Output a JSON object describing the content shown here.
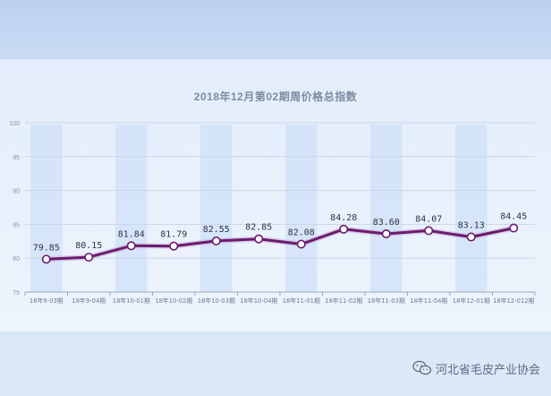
{
  "chart_data": {
    "type": "line",
    "title": "2018年12月第02期周价格总指数",
    "categories": [
      "18年9-03期",
      "18年9-04期",
      "18年10-01期",
      "18年10-02期",
      "18年10-03期",
      "18年10-04期",
      "18年11-01期",
      "18年11-02期",
      "18年11-03期",
      "18年11-04期",
      "18年12-01期",
      "18年12-012期"
    ],
    "series": [
      {
        "values": [
          79.85,
          80.15,
          81.84,
          81.79,
          82.55,
          82.85,
          82.08,
          84.28,
          83.6,
          84.07,
          83.13,
          84.45
        ]
      }
    ],
    "value_labels": [
      "79.85",
      "80.15",
      "81.84",
      "81.79",
      "82.55",
      "82.85",
      "82.08",
      "84.28",
      "83.60",
      "84.07",
      "83.13",
      "84.45"
    ],
    "ylim": [
      75,
      100
    ],
    "yticks": [
      "75",
      "80",
      "85",
      "90",
      "95",
      "100"
    ],
    "grid": true,
    "colors": {
      "line": "#6d1a6e",
      "marker_fill": "#ffffff",
      "column_band": "#cfe0f8",
      "grid": "#c9d6e8"
    }
  },
  "watermark": {
    "text": "河北省毛皮产业协会",
    "icon": "wechat-icon"
  }
}
